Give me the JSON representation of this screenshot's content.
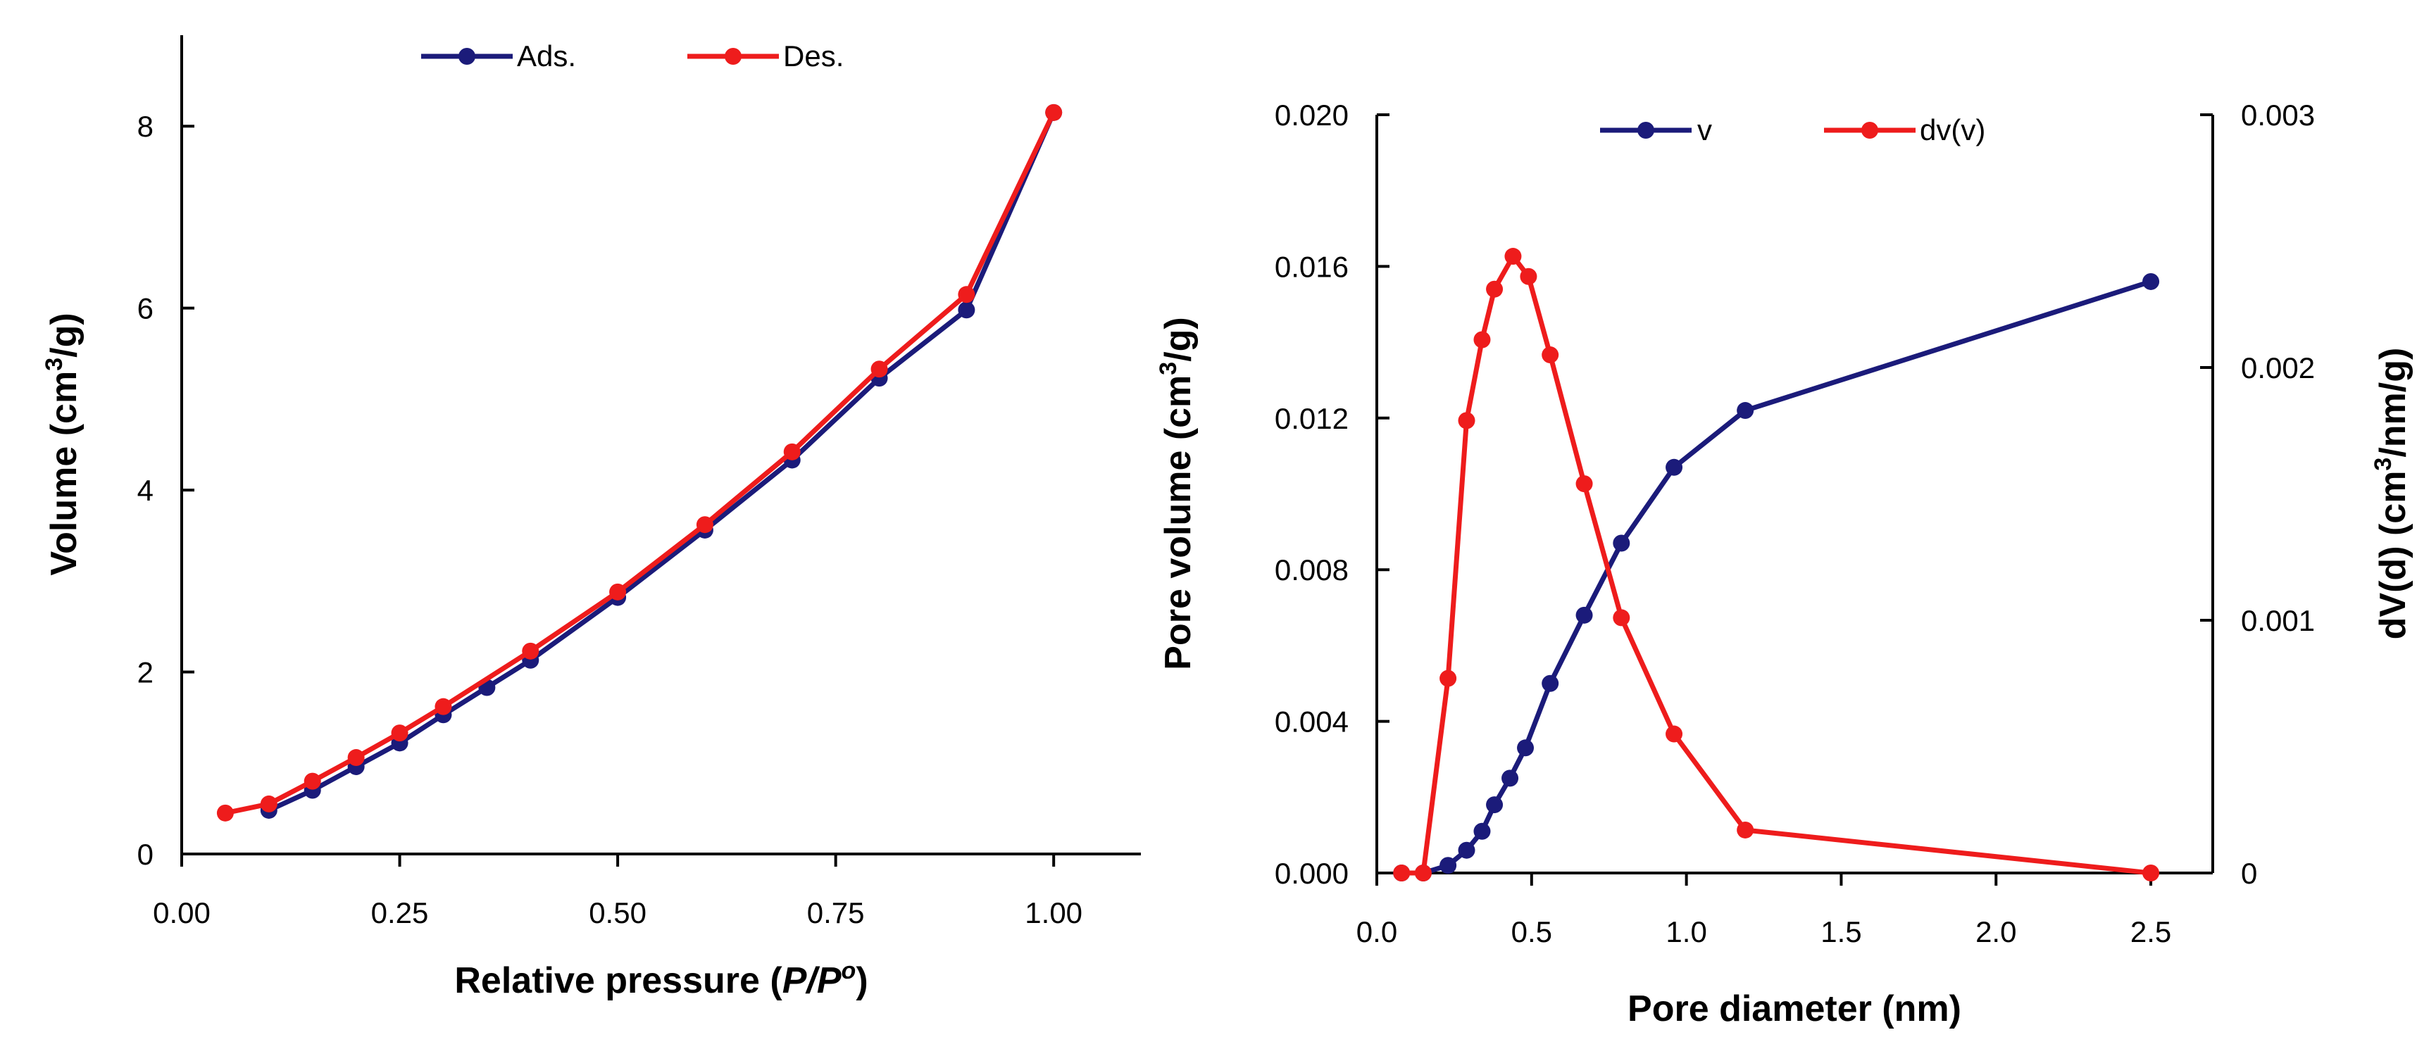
{
  "colors": {
    "navy": "#1b1b7a",
    "red": "#ee1c1c",
    "axis": "#000000"
  },
  "chart_data": [
    {
      "type": "line",
      "id": "isotherm",
      "xlabel_prefix": "Relative pressure (",
      "xlabel_italic": "P/P",
      "xlabel_sup": "o",
      "xlabel_suffix": ")",
      "ylabel_prefix": "Volume (cm",
      "ylabel_sup": "3",
      "ylabel_suffix": "/g)",
      "xlim": [
        0,
        1.1
      ],
      "ylim": [
        0,
        9
      ],
      "xticks": [
        "0.00",
        "0.25",
        "0.50",
        "0.75",
        "1.00"
      ],
      "xtick_values": [
        0,
        0.25,
        0.5,
        0.75,
        1.0
      ],
      "yticks": [
        "0",
        "2",
        "4",
        "6",
        "8"
      ],
      "ytick_values": [
        0,
        2,
        4,
        6,
        8
      ],
      "series": [
        {
          "name": "Ads.",
          "color": "#1b1b7a",
          "x": [
            0.1,
            0.15,
            0.2,
            0.25,
            0.3,
            0.35,
            0.4,
            0.5,
            0.6,
            0.7,
            0.8,
            0.9,
            1.0
          ],
          "y": [
            0.48,
            0.7,
            0.96,
            1.22,
            1.53,
            1.83,
            2.13,
            2.82,
            3.56,
            4.33,
            5.23,
            5.98,
            8.15
          ]
        },
        {
          "name": "Des.",
          "color": "#ee1c1c",
          "x": [
            0.05,
            0.1,
            0.15,
            0.2,
            0.25,
            0.3,
            0.4,
            0.5,
            0.6,
            0.7,
            0.8,
            0.9,
            1.0
          ],
          "y": [
            0.45,
            0.55,
            0.8,
            1.06,
            1.33,
            1.62,
            2.23,
            2.88,
            3.62,
            4.42,
            5.33,
            6.15,
            8.15
          ]
        }
      ],
      "legend": [
        "Ads.",
        "Des."
      ]
    },
    {
      "type": "line",
      "id": "pore-distribution",
      "xlabel": "Pore diameter (nm)",
      "ylabel_prefix": "Pore volume (cm",
      "ylabel_sup": "3",
      "ylabel_suffix": "/g)",
      "y2label_prefix": "dV(d) (cm",
      "y2label_sup": "3",
      "y2label_suffix": "/nm/g)",
      "xlim": [
        0,
        2.7
      ],
      "ylim": [
        0,
        0.02
      ],
      "y2lim": [
        0,
        0.003
      ],
      "xticks": [
        "0.0",
        "0.5",
        "1.0",
        "1.5",
        "2.0",
        "2.5"
      ],
      "xtick_values": [
        0,
        0.5,
        1.0,
        1.5,
        2.0,
        2.5
      ],
      "yticks": [
        "0.000",
        "0.004",
        "0.008",
        "0.012",
        "0.016",
        "0.020"
      ],
      "ytick_values": [
        0,
        0.004,
        0.008,
        0.012,
        0.016,
        0.02
      ],
      "y2ticks": [
        "0",
        "0.001",
        "0.002",
        "0.003"
      ],
      "y2tick_values": [
        0,
        0.001,
        0.002,
        0.003
      ],
      "series": [
        {
          "name": "v",
          "axis": "left",
          "color": "#1b1b7a",
          "x": [
            0.08,
            0.15,
            0.23,
            0.29,
            0.34,
            0.38,
            0.43,
            0.48,
            0.56,
            0.67,
            0.79,
            0.96,
            1.19,
            2.5
          ],
          "y": [
            0.0,
            0.0,
            0.0002,
            0.0006,
            0.0011,
            0.0018,
            0.0025,
            0.0033,
            0.005,
            0.0068,
            0.0087,
            0.0107,
            0.0122,
            0.0156
          ]
        },
        {
          "name": "dv(v)",
          "axis": "right",
          "color": "#ee1c1c",
          "x": [
            0.08,
            0.15,
            0.23,
            0.29,
            0.34,
            0.38,
            0.44,
            0.49,
            0.56,
            0.67,
            0.79,
            0.96,
            1.19,
            2.5
          ],
          "y": [
            0.0,
            0.0,
            0.00077,
            0.00179,
            0.00211,
            0.00231,
            0.00244,
            0.00236,
            0.00205,
            0.00154,
            0.00101,
            0.00055,
            0.00017,
            0.0
          ]
        }
      ],
      "legend": [
        "v",
        "dv(v)"
      ]
    }
  ]
}
